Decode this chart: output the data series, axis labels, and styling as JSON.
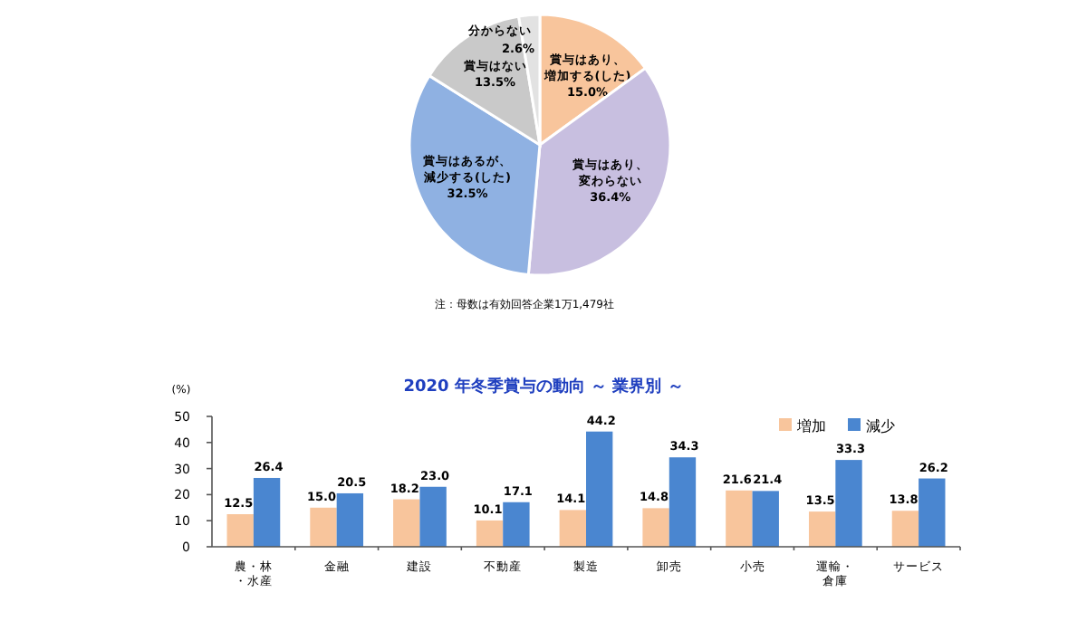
{
  "chart_data": [
    {
      "type": "pie",
      "categories": [
        "賞与はあり、増加する(した)",
        "賞与はあり、変わらない",
        "賞与はあるが、減少する(した)",
        "賞与はない",
        "分からない"
      ],
      "values": [
        15.0,
        36.4,
        32.5,
        13.5,
        2.6
      ],
      "value_labels": [
        "15.0%",
        "36.4%",
        "32.5%",
        "13.5%",
        "2.6%"
      ],
      "colors": [
        "#f8c59c",
        "#c8bfe0",
        "#8fb1e2",
        "#c9c9c9",
        "#e2e2e2"
      ],
      "annotations": [
        "注：母数は有効回答企業1万1,479社"
      ]
    },
    {
      "type": "bar",
      "title": "2020 年冬季賞与の動向 ～ 業界別 ～",
      "ylabel": "(%)",
      "categories": [
        "農・林・水産",
        "金融",
        "建設",
        "不動産",
        "製造",
        "卸売",
        "小売",
        "運輸・倉庫",
        "サービス"
      ],
      "series": [
        {
          "name": "増加",
          "color": "#f8c59c",
          "values": [
            12.5,
            15.0,
            18.2,
            10.1,
            14.1,
            14.8,
            21.6,
            13.5,
            13.8
          ],
          "value_labels": [
            "12.5",
            "15.0",
            "18.2",
            "10.1",
            "14.1",
            "14.8",
            "21.6",
            "13.5",
            "13.8"
          ]
        },
        {
          "name": "減少",
          "color": "#4a86d0",
          "values": [
            26.4,
            20.5,
            23.0,
            17.1,
            44.2,
            34.3,
            21.4,
            33.3,
            26.2
          ],
          "value_labels": [
            "26.4",
            "20.5",
            "23.0",
            "17.1",
            "44.2",
            "34.3",
            "21.4",
            "33.3",
            "26.2"
          ]
        }
      ],
      "ylim": [
        0,
        50
      ],
      "yticks": [
        0,
        10,
        20,
        30,
        40,
        50
      ],
      "legend": "top right",
      "grid": false
    }
  ]
}
